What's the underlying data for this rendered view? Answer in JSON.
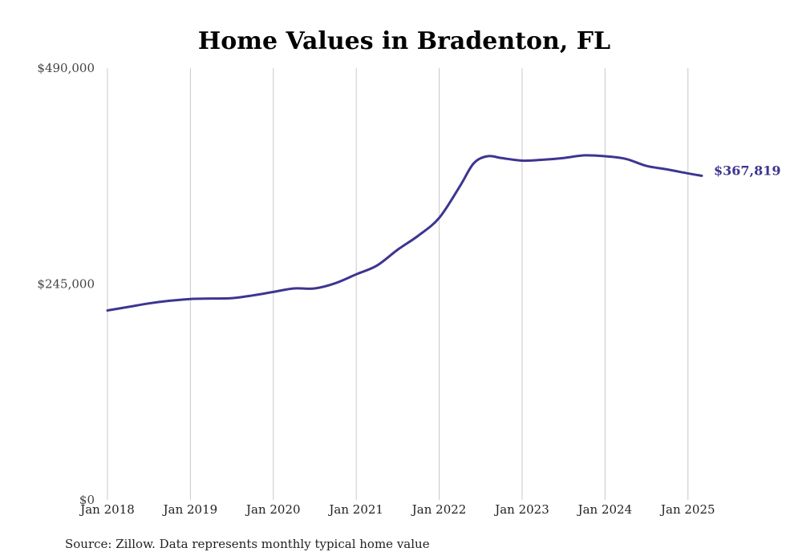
{
  "chart_data": {
    "type": "line",
    "title": "Home Values in Bradenton, FL",
    "xlabel": "",
    "ylabel": "",
    "x_ticks": [
      "Jan 2018",
      "Jan 2019",
      "Jan 2020",
      "Jan 2021",
      "Jan 2022",
      "Jan 2023",
      "Jan 2024",
      "Jan 2025"
    ],
    "y_ticks": [
      "$0",
      "$245,000",
      "$490,000"
    ],
    "y_tick_values": [
      0,
      245000,
      490000
    ],
    "ylim": [
      0,
      490000
    ],
    "xlim": [
      "2018-01",
      "2025-03"
    ],
    "grid": "vertical",
    "series": [
      {
        "color": "#3d3591",
        "end_label": "$367,819",
        "points": [
          {
            "x": "2018-01",
            "y": 215000
          },
          {
            "x": "2018-04",
            "y": 219000
          },
          {
            "x": "2018-07",
            "y": 223000
          },
          {
            "x": "2018-10",
            "y": 226000
          },
          {
            "x": "2019-01",
            "y": 228000
          },
          {
            "x": "2019-04",
            "y": 228500
          },
          {
            "x": "2019-07",
            "y": 229000
          },
          {
            "x": "2019-10",
            "y": 232000
          },
          {
            "x": "2020-01",
            "y": 236000
          },
          {
            "x": "2020-04",
            "y": 240000
          },
          {
            "x": "2020-07",
            "y": 240000
          },
          {
            "x": "2020-10",
            "y": 246000
          },
          {
            "x": "2021-01",
            "y": 256000
          },
          {
            "x": "2021-04",
            "y": 266000
          },
          {
            "x": "2021-07",
            "y": 284000
          },
          {
            "x": "2021-10",
            "y": 300000
          },
          {
            "x": "2022-01",
            "y": 320000
          },
          {
            "x": "2022-04",
            "y": 356000
          },
          {
            "x": "2022-06",
            "y": 382000
          },
          {
            "x": "2022-08",
            "y": 390000
          },
          {
            "x": "2022-10",
            "y": 388000
          },
          {
            "x": "2023-01",
            "y": 385000
          },
          {
            "x": "2023-04",
            "y": 386000
          },
          {
            "x": "2023-07",
            "y": 388000
          },
          {
            "x": "2023-10",
            "y": 391000
          },
          {
            "x": "2024-01",
            "y": 390000
          },
          {
            "x": "2024-04",
            "y": 387000
          },
          {
            "x": "2024-07",
            "y": 379000
          },
          {
            "x": "2024-10",
            "y": 375000
          },
          {
            "x": "2025-01",
            "y": 370500
          },
          {
            "x": "2025-03",
            "y": 367819
          }
        ]
      }
    ],
    "source": "Source: Zillow. Data represents monthly typical home value"
  }
}
